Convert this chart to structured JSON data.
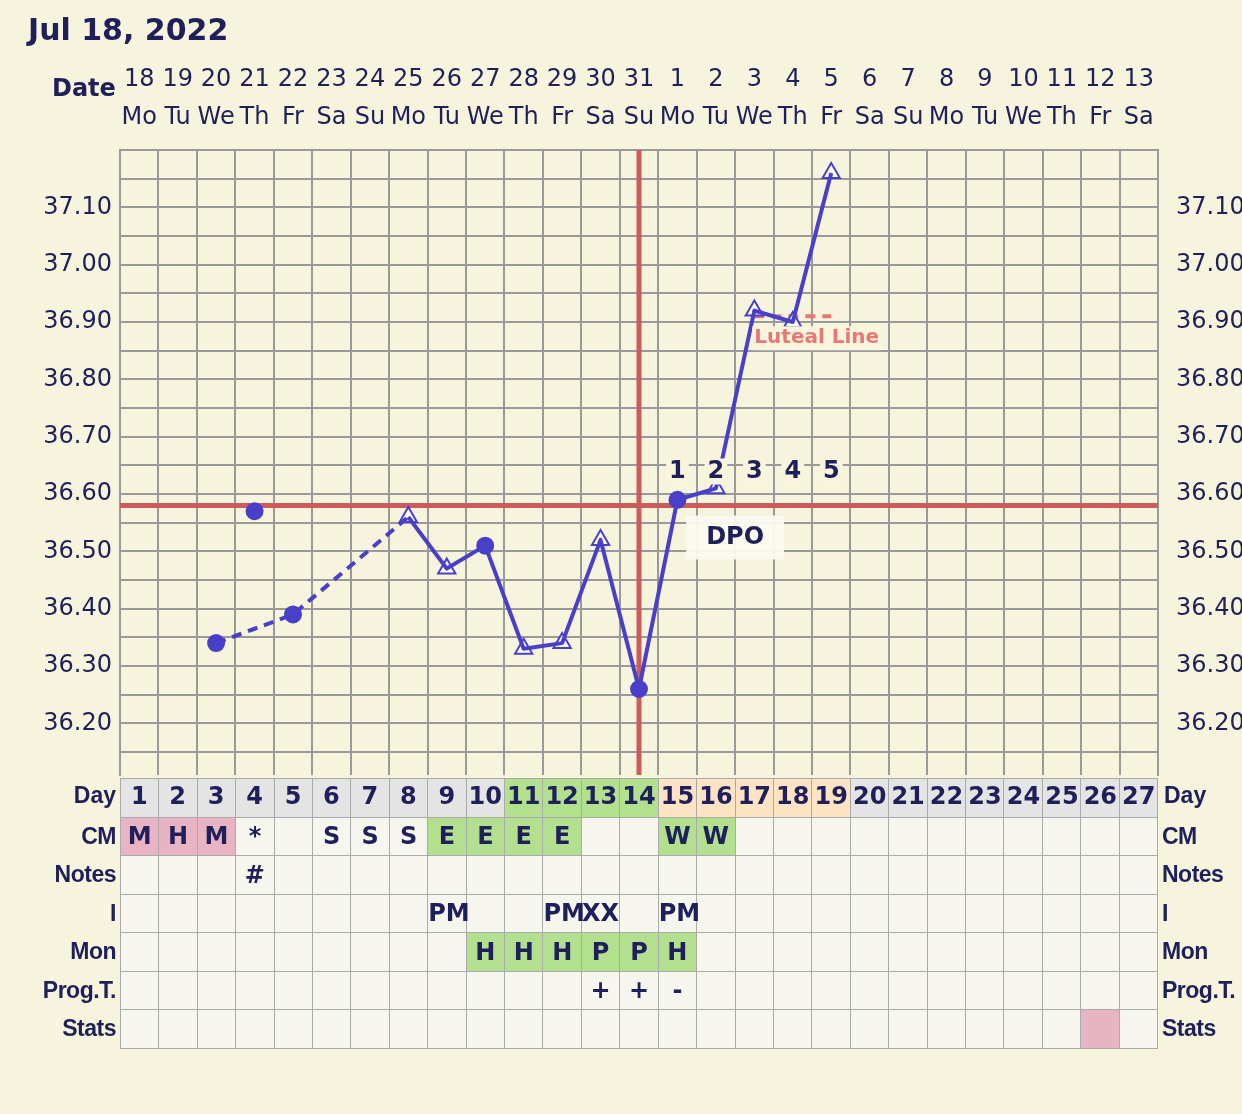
{
  "chart_data": [
    {
      "type": "line",
      "title": "Jul 18, 2022",
      "xlabel": "Date",
      "categories": [
        "18\nMo",
        "19\nTu",
        "20\nWe",
        "21\nTh",
        "22\nFr",
        "23\nSa",
        "24\nSu",
        "25\nMo",
        "26\nTu",
        "27\nWe",
        "28\nTh",
        "29\nFr",
        "30\nSa",
        "31\nSu",
        "1\nMo",
        "2\nTu",
        "3\nWe",
        "4\nTh",
        "5\nFr",
        "6\nSa",
        "7\nSu",
        "8\nMo",
        "9\nTu",
        "10\nWe",
        "11\nTh",
        "12\nFr",
        "13\nSa"
      ],
      "series": [
        {
          "type": "line",
          "color": "#4a3fc8",
          "marker": "none",
          "line_style": "solid",
          "values": [
            null,
            null,
            null,
            null,
            null,
            null,
            null,
            36.56,
            36.47,
            36.51,
            36.33,
            36.34,
            36.52,
            36.26,
            36.59,
            36.61,
            36.92,
            36.9,
            37.16,
            null,
            null,
            null,
            null,
            null,
            null,
            null,
            null
          ]
        },
        {
          "type": "line",
          "color": "#4a3fc8",
          "marker": "none",
          "line_style": "dashed",
          "values": [
            null,
            null,
            36.34,
            null,
            36.39,
            null,
            null,
            36.56,
            null,
            null,
            null,
            null,
            null,
            null,
            null,
            null,
            null,
            null,
            null,
            null,
            null,
            null,
            null,
            null,
            null,
            null,
            null
          ]
        },
        {
          "type": "scatter",
          "color": "#4a3fc8",
          "marker": "circle",
          "values": [
            null,
            null,
            36.34,
            36.57,
            36.39,
            null,
            null,
            null,
            null,
            36.51,
            null,
            null,
            null,
            36.26,
            36.59,
            null,
            null,
            null,
            null,
            null,
            null,
            null,
            null,
            null,
            null,
            null,
            null
          ]
        },
        {
          "type": "scatter",
          "color": "#4a3fc8",
          "marker": "triangle",
          "values": [
            null,
            null,
            null,
            null,
            null,
            null,
            null,
            36.56,
            36.47,
            null,
            36.33,
            36.34,
            36.52,
            null,
            null,
            36.61,
            36.92,
            36.9,
            37.16,
            null,
            null,
            null,
            null,
            null,
            null,
            null,
            null
          ]
        },
        {
          "type": "line",
          "name": "Luteal Line",
          "color": "#e87878",
          "marker": "none",
          "line_style": "dashed",
          "values": [
            null,
            null,
            null,
            null,
            null,
            null,
            null,
            null,
            null,
            null,
            null,
            null,
            null,
            null,
            null,
            null,
            36.91,
            36.91,
            36.91,
            null,
            null,
            null,
            null,
            null,
            null,
            null,
            null
          ]
        }
      ],
      "ylim": [
        36.11,
        37.2
      ],
      "yticks": [
        {
          "value": 36.15,
          "label": null
        },
        {
          "value": 36.2,
          "label": "36.20"
        },
        {
          "value": 36.25,
          "label": null
        },
        {
          "value": 36.3,
          "label": "36.30"
        },
        {
          "value": 36.35,
          "label": null
        },
        {
          "value": 36.4,
          "label": "36.40"
        },
        {
          "value": 36.45,
          "label": null
        },
        {
          "value": 36.5,
          "label": "36.50"
        },
        {
          "value": 36.55,
          "label": null
        },
        {
          "value": 36.6,
          "label": "36.60"
        },
        {
          "value": 36.65,
          "label": null
        },
        {
          "value": 36.7,
          "label": "36.70"
        },
        {
          "value": 36.75,
          "label": null
        },
        {
          "value": 36.8,
          "label": "36.80"
        },
        {
          "value": 36.85,
          "label": null
        },
        {
          "value": 36.9,
          "label": "36.90"
        },
        {
          "value": 36.95,
          "label": null
        },
        {
          "value": 37.0,
          "label": "37.00"
        },
        {
          "value": 37.05,
          "label": null
        },
        {
          "value": 37.1,
          "label": "37.10"
        },
        {
          "value": 37.15,
          "label": null
        }
      ],
      "y2lim": [
        36.11,
        37.2
      ],
      "y2ticks": [
        {
          "value": 36.15,
          "label": null
        },
        {
          "value": 36.2,
          "label": "36.20"
        },
        {
          "value": 36.25,
          "label": null
        },
        {
          "value": 36.3,
          "label": "36.30"
        },
        {
          "value": 36.35,
          "label": null
        },
        {
          "value": 36.4,
          "label": "36.40"
        },
        {
          "value": 36.45,
          "label": null
        },
        {
          "value": 36.5,
          "label": "36.50"
        },
        {
          "value": 36.55,
          "label": null
        },
        {
          "value": 36.6,
          "label": "36.60"
        },
        {
          "value": 36.65,
          "label": null
        },
        {
          "value": 36.7,
          "label": "36.70"
        },
        {
          "value": 36.75,
          "label": null
        },
        {
          "value": 36.8,
          "label": "36.80"
        },
        {
          "value": 36.85,
          "label": null
        },
        {
          "value": 36.9,
          "label": "36.90"
        },
        {
          "value": 36.95,
          "label": null
        },
        {
          "value": 37.0,
          "label": "37.00"
        },
        {
          "value": 37.05,
          "label": null
        },
        {
          "value": 37.1,
          "label": "37.10"
        },
        {
          "value": 37.15,
          "label": null
        }
      ],
      "ref_lines": [
        {
          "axis": "y",
          "value": 36.58,
          "color": "#cc5c5c"
        },
        {
          "axis": "x",
          "value": "31\nSu",
          "color": "#cc5c5c"
        }
      ],
      "annotations": [
        "1",
        "2",
        "3",
        "4",
        "5",
        "DPO"
      ],
      "x2label": "Day",
      "x2lim": [
        0.5,
        27.5
      ],
      "x2ticks": [
        1,
        2,
        3,
        4,
        5,
        6,
        7,
        8,
        9,
        10,
        11,
        12,
        13,
        14,
        15,
        16,
        17,
        18,
        19,
        20,
        21,
        22,
        23,
        24,
        25,
        26,
        27
      ],
      "grid": true,
      "legend": false
    },
    {
      "type": "other",
      "y_categories": [
        null,
        "CM",
        "Notes",
        "I",
        "Mon",
        "Prog.T.",
        "Stats"
      ],
      "y2_categories": [
        null,
        "CM",
        "Notes",
        "I",
        "Mon",
        "Prog.T.",
        "Stats"
      ],
      "cell_labels": [
        [
          null,
          null,
          null,
          null,
          null,
          null,
          null,
          null,
          null,
          null,
          null,
          null,
          null,
          null,
          null,
          null,
          null,
          null,
          null,
          null,
          null,
          null,
          null,
          null,
          null,
          null,
          null
        ],
        [
          "M",
          "H",
          "M",
          "*",
          null,
          "S",
          "S",
          "S",
          "E",
          "E",
          "E",
          "E",
          null,
          null,
          "W",
          "W",
          null,
          null,
          null,
          null,
          null,
          null,
          null,
          null,
          null,
          null,
          null
        ],
        [
          null,
          null,
          null,
          "#",
          null,
          null,
          null,
          null,
          null,
          null,
          null,
          null,
          null,
          null,
          null,
          null,
          null,
          null,
          null,
          null,
          null,
          null,
          null,
          null,
          null,
          null,
          null
        ],
        [
          null,
          null,
          null,
          null,
          null,
          null,
          null,
          null,
          "PM",
          null,
          null,
          "PM",
          "XX",
          null,
          "PM",
          null,
          null,
          null,
          null,
          null,
          null,
          null,
          null,
          null,
          null,
          null,
          null
        ],
        [
          null,
          null,
          null,
          null,
          null,
          null,
          null,
          null,
          null,
          "H",
          "H",
          "H",
          "P",
          "P",
          "H",
          null,
          null,
          null,
          null,
          null,
          null,
          null,
          null,
          null,
          null,
          null,
          null
        ],
        [
          null,
          null,
          null,
          null,
          null,
          null,
          null,
          null,
          null,
          null,
          null,
          null,
          "+",
          "+",
          "-",
          null,
          null,
          null,
          null,
          null,
          null,
          null,
          null,
          null,
          null,
          null,
          null
        ],
        [
          null,
          null,
          null,
          null,
          null,
          null,
          null,
          null,
          null,
          null,
          null,
          null,
          null,
          null,
          null,
          null,
          null,
          null,
          null,
          null,
          null,
          null,
          null,
          null,
          null,
          null,
          null
        ]
      ],
      "colors": [
        [
          "#e4e4e4",
          "#e4e4e4",
          "#e4e4e4",
          "#e4e4e4",
          "#e4e4e4",
          "#e4e4e4",
          "#e4e4e4",
          "#e4e4e4",
          "#e4e4e4",
          "#e4e4e4",
          "#b3e08e",
          "#b3e08e",
          "#b3e08e",
          "#b3e08e",
          "#fbe3c4",
          "#fbe3c4",
          "#fbe3c4",
          "#fbe3c4",
          "#fbe3c4",
          "#e4e4e4",
          "#e4e4e4",
          "#e4e4e4",
          "#e4e4e4",
          "#e4e4e4",
          "#e4e4e4",
          "#e4e4e4",
          "#e4e4e4"
        ],
        [
          "#e8b4c4",
          "#e8b4c4",
          "#e8b4c4",
          null,
          null,
          null,
          null,
          null,
          "#b3e08e",
          "#b3e08e",
          "#b3e08e",
          "#b3e08e",
          null,
          null,
          "#b3e08e",
          "#b3e08e",
          null,
          null,
          null,
          null,
          null,
          null,
          null,
          null,
          null,
          null,
          null
        ],
        [
          null,
          null,
          null,
          null,
          null,
          null,
          null,
          null,
          null,
          null,
          null,
          null,
          null,
          null,
          null,
          null,
          null,
          null,
          null,
          null,
          null,
          null,
          null,
          null,
          null,
          null,
          null
        ],
        [
          null,
          null,
          null,
          null,
          null,
          null,
          null,
          null,
          null,
          null,
          null,
          null,
          null,
          null,
          null,
          null,
          null,
          null,
          null,
          null,
          null,
          null,
          null,
          null,
          null,
          null,
          null
        ],
        [
          null,
          null,
          null,
          null,
          null,
          null,
          null,
          null,
          null,
          "#b3e08e",
          "#b3e08e",
          "#b3e08e",
          "#b3e08e",
          "#b3e08e",
          "#b3e08e",
          null,
          null,
          null,
          null,
          null,
          null,
          null,
          null,
          null,
          null,
          null,
          null
        ],
        [
          null,
          null,
          null,
          null,
          null,
          null,
          null,
          null,
          null,
          null,
          null,
          null,
          null,
          null,
          null,
          null,
          null,
          null,
          null,
          null,
          null,
          null,
          null,
          null,
          null,
          null,
          null
        ],
        [
          null,
          null,
          null,
          null,
          null,
          null,
          null,
          null,
          null,
          null,
          null,
          null,
          null,
          null,
          null,
          null,
          null,
          null,
          null,
          null,
          null,
          null,
          null,
          null,
          null,
          "#e8b4c4",
          null
        ]
      ]
    }
  ]
}
